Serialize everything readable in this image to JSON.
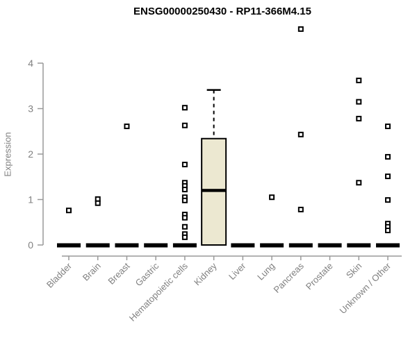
{
  "title": "ENSG00000250430 - RP11-366M4.15",
  "chart_data": {
    "type": "boxplot",
    "title": "ENSG00000250430 - RP11-366M4.15",
    "ylabel": "Expression",
    "xlabel": "",
    "ylim": [
      0,
      4
    ],
    "yticks": [
      0,
      1,
      2,
      3,
      4
    ],
    "grid": false,
    "legend": "none",
    "box_fill_color": "#ece8d1",
    "box_line_color": "#000000",
    "axis_color": "#999999",
    "label_color": "#808080",
    "marker": "open-square",
    "categories": [
      "Bladder",
      "Brain",
      "Breast",
      "Gastric",
      "Hematopoietic cells",
      "Kidney",
      "Liver",
      "Lung",
      "Pancreas",
      "Prostate",
      "Skin",
      "Unknown / Other"
    ],
    "boxes": [
      {
        "category": "Bladder",
        "median": 0,
        "q1": 0,
        "q3": 0,
        "whisker_low": 0,
        "whisker_high": 0,
        "outliers": [
          0.76
        ]
      },
      {
        "category": "Brain",
        "median": 0,
        "q1": 0,
        "q3": 0,
        "whisker_low": 0,
        "whisker_high": 0,
        "outliers": [
          1.01,
          0.92
        ]
      },
      {
        "category": "Breast",
        "median": 0,
        "q1": 0,
        "q3": 0,
        "whisker_low": 0,
        "whisker_high": 0,
        "outliers": [
          2.61
        ]
      },
      {
        "category": "Gastric",
        "median": 0,
        "q1": 0,
        "q3": 0,
        "whisker_low": 0,
        "whisker_high": 0,
        "outliers": []
      },
      {
        "category": "Hematopoietic cells",
        "median": 0,
        "q1": 0,
        "q3": 0,
        "whisker_low": 0,
        "whisker_high": 0,
        "outliers": [
          3.02,
          2.63,
          1.77,
          1.37,
          1.3,
          1.22,
          1.05,
          0.98,
          0.67,
          0.6,
          0.4,
          0.24,
          0.17
        ]
      },
      {
        "category": "Kidney",
        "median": 1.2,
        "q1": 0,
        "q3": 2.34,
        "whisker_low": 0,
        "whisker_high": 3.41,
        "outliers": []
      },
      {
        "category": "Liver",
        "median": 0,
        "q1": 0,
        "q3": 0,
        "whisker_low": 0,
        "whisker_high": 0,
        "outliers": []
      },
      {
        "category": "Lung",
        "median": 0,
        "q1": 0,
        "q3": 0,
        "whisker_low": 0,
        "whisker_high": 0,
        "outliers": [
          1.05
        ]
      },
      {
        "category": "Pancreas",
        "median": 0,
        "q1": 0,
        "q3": 0,
        "whisker_low": 0,
        "whisker_high": 0,
        "outliers": [
          4.75,
          2.43,
          0.78
        ]
      },
      {
        "category": "Prostate",
        "median": 0,
        "q1": 0,
        "q3": 0,
        "whisker_low": 0,
        "whisker_high": 0,
        "outliers": []
      },
      {
        "category": "Skin",
        "median": 0,
        "q1": 0,
        "q3": 0,
        "whisker_low": 0,
        "whisker_high": 0,
        "outliers": [
          3.62,
          3.15,
          2.78,
          1.37
        ]
      },
      {
        "category": "Unknown / Other",
        "median": 0,
        "q1": 0,
        "q3": 0,
        "whisker_low": 0,
        "whisker_high": 0,
        "outliers": [
          2.61,
          1.94,
          1.51,
          0.99,
          0.47,
          0.4,
          0.32
        ]
      }
    ]
  }
}
